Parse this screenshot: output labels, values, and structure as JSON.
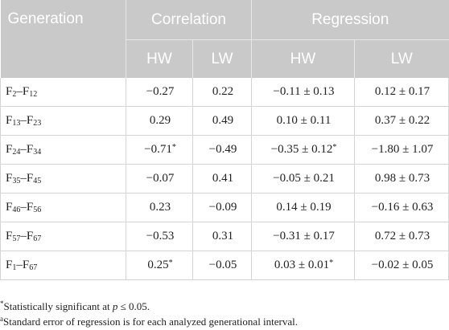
{
  "table": {
    "header_row1": {
      "generation": "Generation",
      "correlation": "Correlation",
      "regression": "Regression"
    },
    "header_row2": [
      "HW",
      "LW",
      "HW",
      "LW"
    ],
    "rows": [
      {
        "gen_a": "F",
        "gen_a_sub": "2",
        "gen_sep": "–",
        "gen_b": "F",
        "gen_b_sub": "12",
        "corr_hw": "−0.27",
        "corr_hw_mark": "",
        "corr_lw": "0.22",
        "reg_hw": "−0.11 ± 0.13",
        "reg_hw_mark": "",
        "reg_lw": "0.12 ± 0.17"
      },
      {
        "gen_a": "F",
        "gen_a_sub": "13",
        "gen_sep": "–",
        "gen_b": "F",
        "gen_b_sub": "23",
        "corr_hw": "0.29",
        "corr_hw_mark": "",
        "corr_lw": "0.49",
        "reg_hw": "0.10 ± 0.11",
        "reg_hw_mark": "",
        "reg_lw": "0.37 ± 0.22"
      },
      {
        "gen_a": "F",
        "gen_a_sub": "24",
        "gen_sep": "–",
        "gen_b": "F",
        "gen_b_sub": "34",
        "corr_hw": "−0.71",
        "corr_hw_mark": "*",
        "corr_lw": "−0.49",
        "reg_hw": "−0.35 ± 0.12",
        "reg_hw_mark": "*",
        "reg_lw": "−1.80 ± 1.07"
      },
      {
        "gen_a": "F",
        "gen_a_sub": "35",
        "gen_sep": "–",
        "gen_b": "F",
        "gen_b_sub": "45",
        "corr_hw": "−0.07",
        "corr_hw_mark": "",
        "corr_lw": "0.41",
        "reg_hw": "−0.05 ± 0.21",
        "reg_hw_mark": "",
        "reg_lw": "0.98 ± 0.73"
      },
      {
        "gen_a": "F",
        "gen_a_sub": "46",
        "gen_sep": "–",
        "gen_b": "F",
        "gen_b_sub": "56",
        "corr_hw": "0.23",
        "corr_hw_mark": "",
        "corr_lw": "−0.09",
        "reg_hw": "0.14 ± 0.19",
        "reg_hw_mark": "",
        "reg_lw": "−0.16 ± 0.63"
      },
      {
        "gen_a": "F",
        "gen_a_sub": "57",
        "gen_sep": "–",
        "gen_b": "F",
        "gen_b_sub": "67",
        "corr_hw": "−0.53",
        "corr_hw_mark": "",
        "corr_lw": "0.31",
        "reg_hw": "−0.31 ± 0.17",
        "reg_hw_mark": "",
        "reg_lw": "0.72 ± 0.73"
      },
      {
        "gen_a": "F",
        "gen_a_sub": "1",
        "gen_sep": "–",
        "gen_b": "F",
        "gen_b_sub": "67",
        "corr_hw": "0.25",
        "corr_hw_mark": "*",
        "corr_lw": "−0.05",
        "reg_hw": "0.03 ± 0.01",
        "reg_hw_mark": "*",
        "reg_lw": "−0.02 ± 0.05"
      }
    ]
  },
  "footnotes": {
    "note1": {
      "mark": "*",
      "text_before": "Statistically significant at ",
      "italic": "p",
      "text_after": " ≤ 0.05."
    },
    "note2": {
      "mark": "a",
      "text": "Standard error of regression is for each analyzed generational interval."
    }
  },
  "colors": {
    "header_bg": "#c9c9c9",
    "header_text": "#ffffff",
    "body_text": "#222222",
    "border": "#d4d4d4"
  }
}
